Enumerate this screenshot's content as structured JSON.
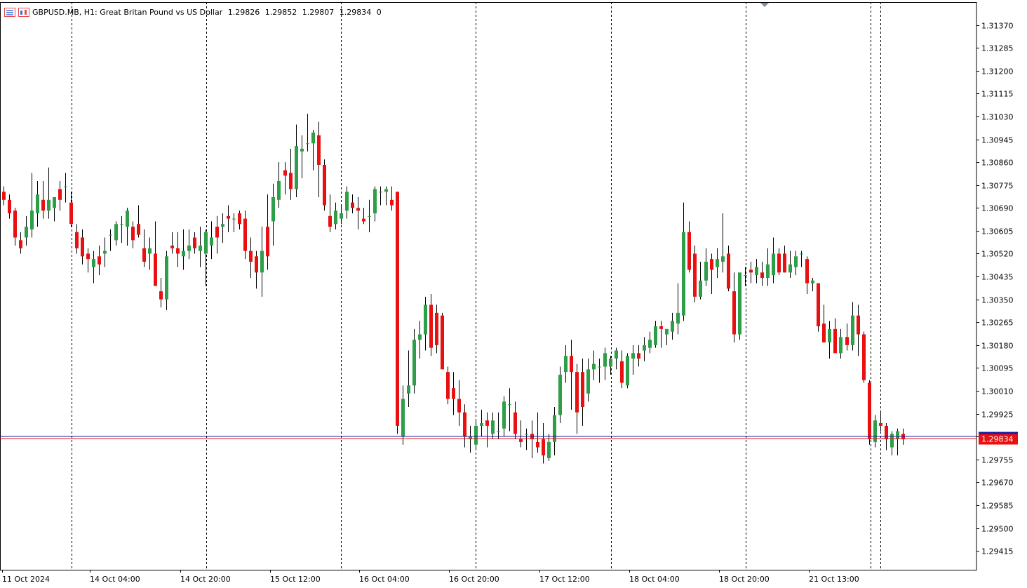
{
  "header": {
    "symbol_info": "GBPUSD.MB, H1:  Great Britan Pound vs US Dollar",
    "open": "1.29826",
    "high": "1.29852",
    "low": "1.29807",
    "close": "1.29834",
    "volume": "0",
    "icons": [
      "chart-list-icon",
      "chart-window-icon"
    ]
  },
  "colors": {
    "bull": "#2e9e48",
    "bear": "#e81010",
    "grid": "#000000",
    "price_line": "#e81010",
    "bid_line": "#1a1aa0",
    "price_label_bg": "#e81010",
    "price_label_text": "#ffffff",
    "background": "#ffffff"
  },
  "chart_data": {
    "type": "candlestick",
    "timeframe": "H1",
    "ylim": [
      1.29345,
      1.31455
    ],
    "y_ticks": [
      "1.31370",
      "1.31285",
      "1.31200",
      "1.31115",
      "1.31030",
      "1.30945",
      "1.30860",
      "1.30775",
      "1.30690",
      "1.30605",
      "1.30520",
      "1.30435",
      "1.30350",
      "1.30265",
      "1.30180",
      "1.30095",
      "1.30010",
      "1.29925",
      "1.29840",
      "1.29755",
      "1.29670",
      "1.29585",
      "1.29500",
      "1.29415"
    ],
    "x_labels": [
      "11 Oct 2024",
      "14 Oct 04:00",
      "14 Oct 20:00",
      "15 Oct 12:00",
      "16 Oct 04:00",
      "16 Oct 20:00",
      "17 Oct 12:00",
      "18 Oct 04:00",
      "18 Oct 20:00",
      "21 Oct 13:00"
    ],
    "current_price": "1.29834",
    "grid": "vertical dashed",
    "candles": [
      [
        1.3075,
        1.3077,
        1.307,
        1.3072
      ],
      [
        1.3072,
        1.3074,
        1.3065,
        1.3067
      ],
      [
        1.3068,
        1.3069,
        1.3055,
        1.3058
      ],
      [
        1.3057,
        1.306,
        1.3052,
        1.3054
      ],
      [
        1.3058,
        1.3066,
        1.3055,
        1.3062
      ],
      [
        1.3061,
        1.3082,
        1.3058,
        1.3068
      ],
      [
        1.3067,
        1.3079,
        1.3062,
        1.3074
      ],
      [
        1.3072,
        1.3079,
        1.3065,
        1.3068
      ],
      [
        1.3068,
        1.3084,
        1.3065,
        1.3072
      ],
      [
        1.3069,
        1.3073,
        1.3064,
        1.3073
      ],
      [
        1.3076,
        1.3079,
        1.3068,
        1.3072
      ],
      [
        1.3077,
        1.3082,
        1.3071,
        1.3077
      ],
      [
        1.3071,
        1.3075,
        1.3062,
        1.3063
      ],
      [
        1.306,
        1.3063,
        1.3052,
        1.3054
      ],
      [
        1.3058,
        1.3061,
        1.3048,
        1.3051
      ],
      [
        1.3052,
        1.3054,
        1.3045,
        1.305
      ],
      [
        1.3047,
        1.3053,
        1.3041,
        1.305
      ],
      [
        1.3051,
        1.3055,
        1.3044,
        1.3048
      ],
      [
        1.3052,
        1.3058,
        1.3047,
        1.3053
      ],
      [
        1.3059,
        1.3061,
        1.3053,
        1.3059
      ],
      [
        1.3057,
        1.3064,
        1.3055,
        1.3063
      ],
      [
        1.3063,
        1.3066,
        1.3056,
        1.3063
      ],
      [
        1.3062,
        1.3069,
        1.3055,
        1.3068
      ],
      [
        1.3062,
        1.3064,
        1.3054,
        1.3057
      ],
      [
        1.3063,
        1.307,
        1.3058,
        1.3059
      ],
      [
        1.3054,
        1.3061,
        1.3047,
        1.3049
      ],
      [
        1.3052,
        1.3058,
        1.3046,
        1.3054
      ],
      [
        1.3052,
        1.3064,
        1.3041,
        1.304
      ],
      [
        1.3038,
        1.3043,
        1.3032,
        1.3035
      ],
      [
        1.3035,
        1.3053,
        1.3031,
        1.3051
      ],
      [
        1.3055,
        1.306,
        1.3052,
        1.3054
      ],
      [
        1.3054,
        1.306,
        1.3047,
        1.3052
      ],
      [
        1.3051,
        1.3061,
        1.3046,
        1.3053
      ],
      [
        1.3053,
        1.3061,
        1.305,
        1.3055
      ],
      [
        1.3058,
        1.306,
        1.3052,
        1.3054
      ],
      [
        1.3053,
        1.3062,
        1.3047,
        1.3055
      ],
      [
        1.3052,
        1.3061,
        1.304,
        1.306
      ],
      [
        1.3055,
        1.3064,
        1.305,
        1.3058
      ],
      [
        1.3062,
        1.3066,
        1.3052,
        1.3058
      ],
      [
        1.3062,
        1.3067,
        1.3056,
        1.3063
      ],
      [
        1.3066,
        1.307,
        1.306,
        1.3065
      ],
      [
        1.3065,
        1.3067,
        1.306,
        1.3065
      ],
      [
        1.3067,
        1.3068,
        1.3061,
        1.3063
      ],
      [
        1.3065,
        1.3068,
        1.305,
        1.3053
      ],
      [
        1.3053,
        1.3058,
        1.3043,
        1.3049
      ],
      [
        1.3051,
        1.3053,
        1.3039,
        1.3045
      ],
      [
        1.3045,
        1.3062,
        1.3036,
        1.3053
      ],
      [
        1.3062,
        1.3074,
        1.3046,
        1.3051
      ],
      [
        1.3064,
        1.3078,
        1.3055,
        1.3073
      ],
      [
        1.3072,
        1.3086,
        1.3069,
        1.3079
      ],
      [
        1.3083,
        1.3086,
        1.3074,
        1.3081
      ],
      [
        1.3082,
        1.3091,
        1.3072,
        1.3076
      ],
      [
        1.3076,
        1.31,
        1.3073,
        1.3092
      ],
      [
        1.309,
        1.3096,
        1.308,
        1.3091
      ],
      [
        1.3093,
        1.3104,
        1.309,
        1.3093
      ],
      [
        1.3093,
        1.3098,
        1.3083,
        1.3097
      ],
      [
        1.3096,
        1.3101,
        1.3073,
        1.3085
      ],
      [
        1.3085,
        1.3087,
        1.3068,
        1.307
      ],
      [
        1.3066,
        1.3074,
        1.306,
        1.3062
      ],
      [
        1.3063,
        1.3071,
        1.3061,
        1.3068
      ],
      [
        1.3065,
        1.307,
        1.3063,
        1.3067
      ],
      [
        1.3068,
        1.3077,
        1.3065,
        1.3075
      ],
      [
        1.3071,
        1.3074,
        1.3067,
        1.3069
      ],
      [
        1.3069,
        1.3073,
        1.3061,
        1.3068
      ],
      [
        1.3065,
        1.3069,
        1.3063,
        1.3064
      ],
      [
        1.3066,
        1.3072,
        1.306,
        1.3066
      ],
      [
        1.3067,
        1.3077,
        1.3064,
        1.3076
      ],
      [
        1.3075,
        1.3077,
        1.307,
        1.3075
      ],
      [
        1.3075,
        1.3077,
        1.307,
        1.3076
      ],
      [
        1.3072,
        1.3077,
        1.3068,
        1.307
      ],
      [
        1.3075,
        1.3075,
        1.2985,
        1.2988
      ],
      [
        1.2984,
        1.3003,
        1.2981,
        1.2998
      ],
      [
        1.3,
        1.3016,
        1.2995,
        1.3003
      ],
      [
        1.3003,
        1.3024,
        1.3,
        1.302
      ],
      [
        1.302,
        1.3027,
        1.3013,
        1.3022
      ],
      [
        1.3022,
        1.3036,
        1.3016,
        1.3033
      ],
      [
        1.3033,
        1.3037,
        1.3014,
        1.3017
      ],
      [
        1.303,
        1.3033,
        1.3015,
        1.3018
      ],
      [
        1.3029,
        1.303,
        1.3009,
        1.3009
      ],
      [
        1.3008,
        1.301,
        1.2996,
        1.2998
      ],
      [
        1.3002,
        1.3008,
        1.2992,
        1.2998
      ],
      [
        1.2998,
        1.3005,
        1.2988,
        1.2993
      ],
      [
        1.2993,
        1.2996,
        1.298,
        1.2984
      ],
      [
        1.2983,
        1.2988,
        1.2978,
        1.2984
      ],
      [
        1.2981,
        1.299,
        1.2979,
        1.2988
      ],
      [
        1.2988,
        1.2994,
        1.2984,
        1.2989
      ],
      [
        1.299,
        1.2993,
        1.298,
        1.2988
      ],
      [
        1.2985,
        1.2993,
        1.2983,
        1.299
      ],
      [
        1.2986,
        1.2993,
        1.2983,
        1.2986
      ],
      [
        1.2987,
        1.2999,
        1.2984,
        1.2997
      ],
      [
        1.2996,
        1.3002,
        1.2986,
        1.2996
      ],
      [
        1.2993,
        1.2997,
        1.2983,
        1.2985
      ],
      [
        1.2983,
        1.299,
        1.298,
        1.2982
      ],
      [
        1.2985,
        1.2987,
        1.2979,
        1.2985
      ],
      [
        1.2985,
        1.299,
        1.2976,
        1.2983
      ],
      [
        1.2982,
        1.2993,
        1.2978,
        1.298
      ],
      [
        1.2983,
        1.2989,
        1.2974,
        1.2977
      ],
      [
        1.2976,
        1.2985,
        1.2975,
        1.2982
      ],
      [
        1.2982,
        1.2995,
        1.2977,
        1.2992
      ],
      [
        1.2992,
        1.301,
        1.2989,
        1.3007
      ],
      [
        1.3008,
        1.3018,
        1.3004,
        1.3014
      ],
      [
        1.3014,
        1.302,
        1.2994,
        1.3008
      ],
      [
        1.3008,
        1.3011,
        1.2985,
        1.2993
      ],
      [
        1.3008,
        1.3013,
        1.2988,
        1.2995
      ],
      [
        1.3,
        1.3013,
        1.2997,
        1.3009
      ],
      [
        1.3009,
        1.3016,
        1.3005,
        1.3011
      ],
      [
        1.301,
        1.3013,
        1.3004,
        1.301
      ],
      [
        1.301,
        1.3017,
        1.3005,
        1.3015
      ],
      [
        1.301,
        1.3014,
        1.3007,
        1.3013
      ],
      [
        1.3013,
        1.3017,
        1.3009,
        1.3016
      ],
      [
        1.3012,
        1.3016,
        1.3002,
        1.3004
      ],
      [
        1.3003,
        1.3015,
        1.3002,
        1.3014
      ],
      [
        1.3013,
        1.3018,
        1.3007,
        1.3015
      ],
      [
        1.3015,
        1.3018,
        1.301,
        1.3013
      ],
      [
        1.3016,
        1.3021,
        1.3012,
        1.3018
      ],
      [
        1.3017,
        1.3023,
        1.3015,
        1.302
      ],
      [
        1.3018,
        1.3027,
        1.3017,
        1.3025
      ],
      [
        1.3025,
        1.3027,
        1.3017,
        1.3024
      ],
      [
        1.3022,
        1.3024,
        1.3018,
        1.3024
      ],
      [
        1.3023,
        1.303,
        1.302,
        1.3027
      ],
      [
        1.3026,
        1.3041,
        1.3022,
        1.303
      ],
      [
        1.3029,
        1.3071,
        1.3027,
        1.306
      ],
      [
        1.306,
        1.3064,
        1.3045,
        1.3046
      ],
      [
        1.3052,
        1.3055,
        1.3034,
        1.3036
      ],
      [
        1.3036,
        1.3049,
        1.3035,
        1.3042
      ],
      [
        1.3042,
        1.3054,
        1.304,
        1.3049
      ],
      [
        1.305,
        1.3052,
        1.3037,
        1.3046
      ],
      [
        1.3047,
        1.3054,
        1.3043,
        1.305
      ],
      [
        1.3049,
        1.3067,
        1.3045,
        1.3051
      ],
      [
        1.3052,
        1.3055,
        1.3038,
        1.3039
      ],
      [
        1.3038,
        1.3045,
        1.3019,
        1.3022
      ],
      [
        1.3022,
        1.3043,
        1.302,
        1.3045
      ],
      [
        1.3044,
        1.3047,
        1.304,
        1.3044
      ],
      [
        1.3046,
        1.3049,
        1.3041,
        1.3045
      ],
      [
        1.3044,
        1.305,
        1.3041,
        1.3047
      ],
      [
        1.3045,
        1.3049,
        1.304,
        1.3043
      ],
      [
        1.3043,
        1.3054,
        1.304,
        1.3048
      ],
      [
        1.3044,
        1.3058,
        1.3041,
        1.3052
      ],
      [
        1.3052,
        1.3054,
        1.3044,
        1.3045
      ],
      [
        1.3052,
        1.3055,
        1.3045,
        1.3045
      ],
      [
        1.3045,
        1.3053,
        1.3043,
        1.3048
      ],
      [
        1.3047,
        1.3053,
        1.3044,
        1.3051
      ],
      [
        1.3052,
        1.3053,
        1.3047,
        1.3052
      ],
      [
        1.305,
        1.3051,
        1.3037,
        1.3041
      ],
      [
        1.3041,
        1.3043,
        1.3038,
        1.3042
      ],
      [
        1.3041,
        1.3041,
        1.3023,
        1.3025
      ],
      [
        1.3026,
        1.3033,
        1.3019,
        1.3019
      ],
      [
        1.3019,
        1.3027,
        1.3013,
        1.3024
      ],
      [
        1.3024,
        1.3028,
        1.3015,
        1.3015
      ],
      [
        1.3015,
        1.3024,
        1.3013,
        1.3021
      ],
      [
        1.3021,
        1.3026,
        1.3016,
        1.3018
      ],
      [
        1.3018,
        1.3034,
        1.3016,
        1.3029
      ],
      [
        1.3029,
        1.3033,
        1.3014,
        1.3022
      ],
      [
        1.3022,
        1.3023,
        1.3004,
        1.3005
      ],
      [
        1.3004,
        1.3005,
        1.2981,
        1.2983
      ],
      [
        1.2982,
        1.2992,
        1.298,
        1.299
      ],
      [
        1.2989,
        1.2993,
        1.2986,
        1.2988
      ],
      [
        1.2988,
        1.2989,
        1.2979,
        1.2983
      ],
      [
        1.298,
        1.2986,
        1.2977,
        1.2985
      ],
      [
        1.2983,
        1.2987,
        1.2977,
        1.2986
      ],
      [
        1.2985,
        1.2987,
        1.2981,
        1.2983
      ]
    ]
  }
}
